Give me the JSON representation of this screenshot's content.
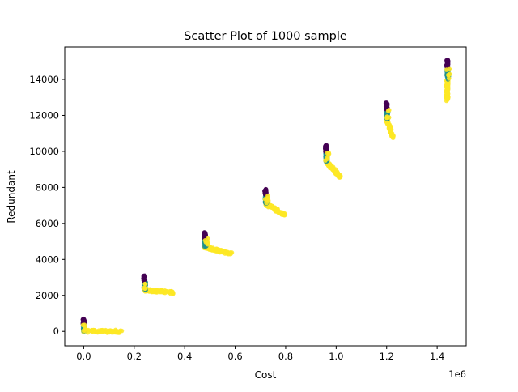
{
  "chart_data": {
    "type": "scatter",
    "title": "Scatter Plot of 1000 sample",
    "xlabel": "Cost",
    "ylabel": "Redundant",
    "x_offset_label": "1e6",
    "xlim": [
      -75000,
      1515000
    ],
    "ylim": [
      -800,
      15800
    ],
    "x_ticks": [
      0,
      200000,
      400000,
      600000,
      800000,
      1000000,
      1200000,
      1400000
    ],
    "x_tick_labels": [
      "0.0",
      "0.2",
      "0.4",
      "0.6",
      "0.8",
      "1.0",
      "1.2",
      "1.4"
    ],
    "y_ticks": [
      0,
      2000,
      4000,
      6000,
      8000,
      10000,
      12000,
      14000
    ],
    "y_tick_labels": [
      "0",
      "2000",
      "4000",
      "6000",
      "8000",
      "10000",
      "12000",
      "14000"
    ],
    "grid": false,
    "clusters": [
      {
        "x": 0,
        "y_top": 700,
        "y_bottom": 0,
        "tail_x_end": 150000,
        "tail_y_end": 0
      },
      {
        "x": 240000,
        "y_top": 3100,
        "y_bottom": 2300,
        "tail_x_end": 360000,
        "tail_y_end": 2150
      },
      {
        "x": 480000,
        "y_top": 5500,
        "y_bottom": 4700,
        "tail_x_end": 585000,
        "tail_y_end": 4300
      },
      {
        "x": 720000,
        "y_top": 7900,
        "y_bottom": 7100,
        "tail_x_end": 800000,
        "tail_y_end": 6450
      },
      {
        "x": 960000,
        "y_top": 10350,
        "y_bottom": 9450,
        "tail_x_end": 1015000,
        "tail_y_end": 8600
      },
      {
        "x": 1200000,
        "y_top": 12700,
        "y_bottom": 11800,
        "tail_x_end": 1225000,
        "tail_y_end": 10750
      },
      {
        "x": 1440000,
        "y_top": 15100,
        "y_bottom": 14000,
        "tail_x_end": 1440000,
        "tail_y_end": 12850
      }
    ],
    "colors": {
      "top": "#440154",
      "middle": "#21918c",
      "tail": "#fde725"
    }
  }
}
